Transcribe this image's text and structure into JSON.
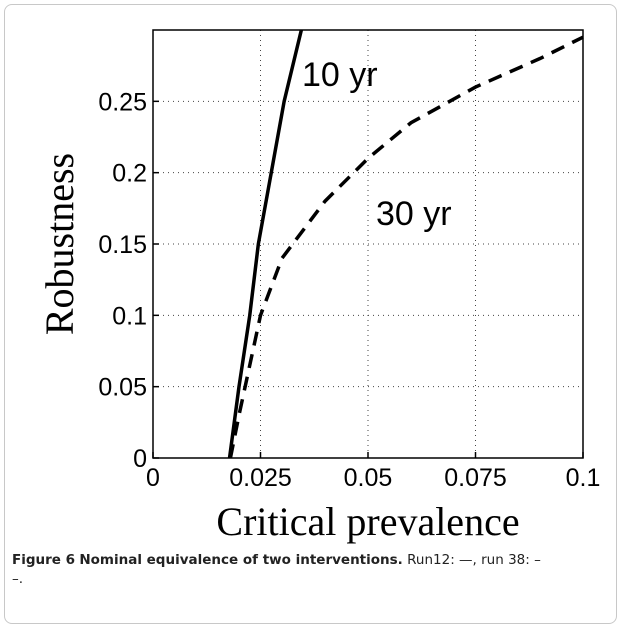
{
  "chart_data": {
    "type": "line",
    "xlabel": "Critical prevalence",
    "ylabel": "Robustness",
    "xlim": [
      0,
      0.1
    ],
    "ylim": [
      0,
      0.3
    ],
    "xticks": [
      0,
      0.025,
      0.05,
      0.075,
      0.1
    ],
    "yticks": [
      0,
      0.05,
      0.1,
      0.15,
      0.2,
      0.25
    ],
    "grid": true,
    "series": [
      {
        "name": "10 yr",
        "color": "#000000",
        "dash": "solid",
        "x": [
          0.0178,
          0.02,
          0.0225,
          0.0245,
          0.0275,
          0.0305,
          0.0345
        ],
        "values": [
          0,
          0.05,
          0.1,
          0.15,
          0.2,
          0.25,
          0.3
        ]
      },
      {
        "name": "30 yr",
        "color": "#000000",
        "dash": "dashed",
        "x": [
          0.018,
          0.02,
          0.025,
          0.03,
          0.04,
          0.05,
          0.06,
          0.075,
          0.09,
          0.1
        ],
        "values": [
          0,
          0.03,
          0.1,
          0.14,
          0.18,
          0.21,
          0.235,
          0.26,
          0.28,
          0.295
        ]
      }
    ]
  },
  "caption": {
    "label": "Figure 6",
    "title": "Nominal equivalence of two interventions.",
    "text": "Run12: —, run 38: – –."
  }
}
